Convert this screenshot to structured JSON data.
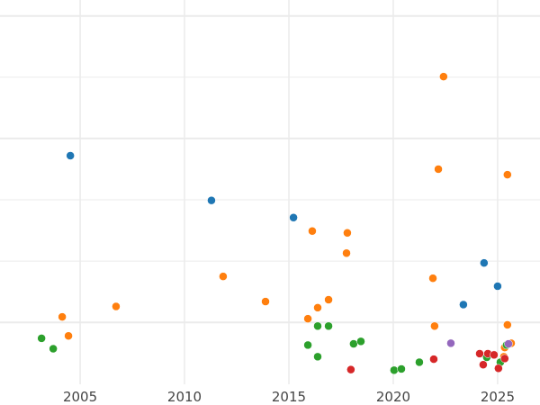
{
  "chart_data": {
    "type": "scatter",
    "title": "",
    "xlabel": "",
    "ylabel": "",
    "xlim": [
      2001.16,
      2027.03
    ],
    "ylim": [
      -1.01,
      5.26
    ],
    "x_ticks": [
      2005,
      2010,
      2015,
      2020,
      2025
    ],
    "x_tick_labels": [
      "2005",
      "2010",
      "2015",
      "2020",
      "2025"
    ],
    "y_gridlines": [
      0,
      1,
      2,
      3,
      4,
      5
    ],
    "y_major_gridlines": [
      0,
      3,
      5
    ],
    "grid": true,
    "legend": "none",
    "series": [
      {
        "color": "#1f77b4",
        "points": [
          [
            2004.53,
            2.72
          ],
          [
            2011.29,
            1.99
          ],
          [
            2015.22,
            1.71
          ],
          [
            2024.35,
            0.97
          ],
          [
            2025.0,
            0.59
          ],
          [
            2023.36,
            0.29
          ]
        ]
      },
      {
        "color": "#ff7f0e",
        "points": [
          [
            2022.41,
            4.01
          ],
          [
            2022.16,
            2.5
          ],
          [
            2025.47,
            2.41
          ],
          [
            2016.12,
            1.49
          ],
          [
            2017.8,
            1.46
          ],
          [
            2017.76,
            1.13
          ],
          [
            2011.85,
            0.75
          ],
          [
            2021.9,
            0.72
          ],
          [
            2013.88,
            0.34
          ],
          [
            2016.9,
            0.37
          ],
          [
            2016.38,
            0.24
          ],
          [
            2006.72,
            0.26
          ],
          [
            2004.14,
            0.09
          ],
          [
            2015.91,
            0.06
          ],
          [
            2004.44,
            -0.22
          ],
          [
            2021.98,
            -0.06
          ],
          [
            2025.47,
            -0.04
          ],
          [
            2025.65,
            -0.34
          ],
          [
            2025.34,
            -0.41
          ],
          [
            2025.3,
            -0.56
          ]
        ]
      },
      {
        "color": "#2ca02c",
        "points": [
          [
            2003.15,
            -0.26
          ],
          [
            2003.71,
            -0.43
          ],
          [
            2016.38,
            -0.06
          ],
          [
            2016.9,
            -0.06
          ],
          [
            2015.91,
            -0.37
          ],
          [
            2016.38,
            -0.56
          ],
          [
            2018.1,
            -0.35
          ],
          [
            2018.45,
            -0.31
          ],
          [
            2020.04,
            -0.78
          ],
          [
            2020.39,
            -0.76
          ],
          [
            2021.25,
            -0.65
          ],
          [
            2024.48,
            -0.57
          ],
          [
            2025.13,
            -0.65
          ],
          [
            2025.43,
            -0.37
          ]
        ]
      },
      {
        "color": "#d62728",
        "points": [
          [
            2017.97,
            -0.77
          ],
          [
            2021.94,
            -0.6
          ],
          [
            2024.14,
            -0.51
          ],
          [
            2024.53,
            -0.51
          ],
          [
            2024.83,
            -0.53
          ],
          [
            2024.31,
            -0.69
          ],
          [
            2025.04,
            -0.75
          ],
          [
            2025.34,
            -0.59
          ]
        ]
      },
      {
        "color": "#9467bd",
        "points": [
          [
            2022.76,
            -0.34
          ],
          [
            2025.52,
            -0.35
          ]
        ]
      }
    ]
  }
}
